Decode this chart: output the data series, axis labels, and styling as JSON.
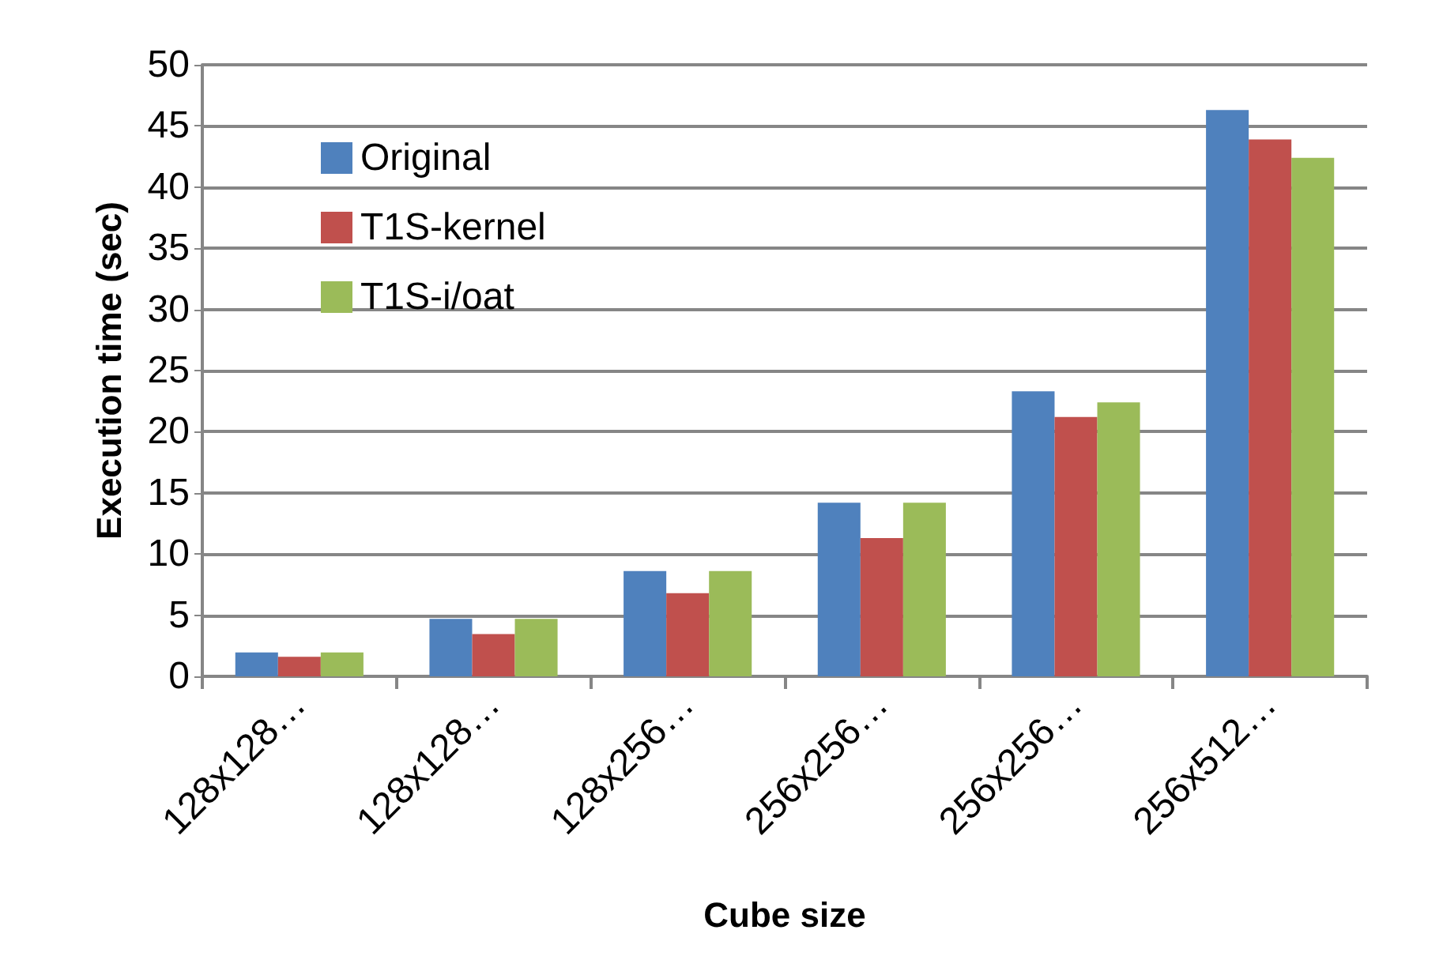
{
  "chart_data": {
    "type": "bar",
    "xlabel": "Cube size",
    "ylabel": "Execution time (sec)",
    "categories": [
      "128x128…",
      "128x128…",
      "128x256…",
      "256x256…",
      "256x256…",
      "256x512…"
    ],
    "series": [
      {
        "name": "Original",
        "color": "#4f81bd",
        "values": [
          1.95,
          4.7,
          8.6,
          14.2,
          23.3,
          46.3
        ]
      },
      {
        "name": "T1S-kernel",
        "color": "#c0504d",
        "values": [
          1.6,
          3.45,
          6.8,
          11.3,
          21.2,
          43.9
        ]
      },
      {
        "name": "T1S-i/oat",
        "color": "#9bbb59",
        "values": [
          1.95,
          4.7,
          8.6,
          14.2,
          22.4,
          42.4
        ]
      }
    ],
    "ylim": [
      0,
      50
    ],
    "yticks": [
      0,
      5,
      10,
      15,
      20,
      25,
      30,
      35,
      40,
      45,
      50
    ],
    "grid": "y",
    "legend": "top left"
  }
}
